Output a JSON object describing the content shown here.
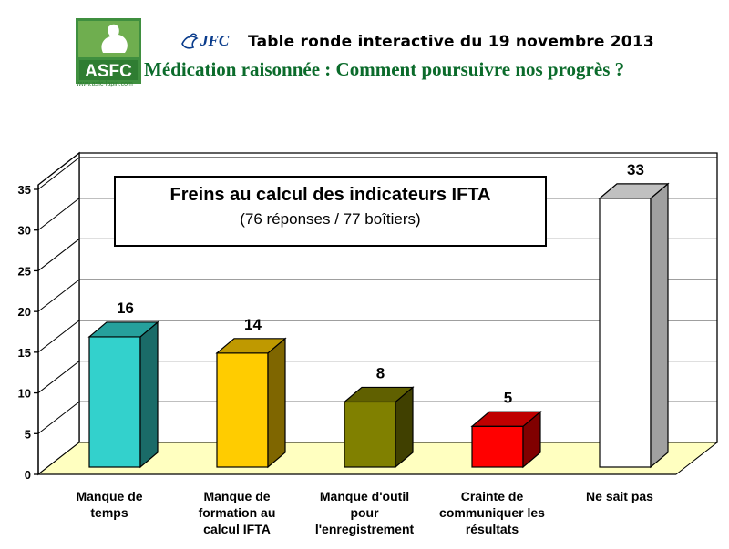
{
  "header": {
    "logo_text": "ASFC",
    "logo_caption": "www.asfc-lapin.com",
    "jfc_text": "JFC",
    "event_title": "Table ronde interactive du 19 novembre 2013",
    "subtitle": "Médication raisonnée : Comment poursuivre nos progrès ?"
  },
  "chart_data": {
    "type": "bar",
    "title": "Freins au calcul des indicateurs IFTA",
    "subtitle": "(76 réponses / 77 boîtiers)",
    "categories": [
      [
        "Manque de",
        "temps"
      ],
      [
        "Manque de",
        "formation au",
        "calcul IFTA"
      ],
      [
        "Manque d'outil",
        "pour",
        "l'enregistrement"
      ],
      [
        "Crainte de",
        "communiquer les",
        "résultats"
      ],
      [
        "Ne sait pas"
      ]
    ],
    "values": [
      16,
      14,
      8,
      5,
      33
    ],
    "colors": [
      "#33d1cc",
      "#ffcc00",
      "#808000",
      "#ff0000",
      "#ffffff"
    ],
    "side_colors": [
      "#1a6b68",
      "#7f6600",
      "#404000",
      "#800000",
      "#a0a0a0"
    ],
    "top_colors": [
      "#26a09c",
      "#bf9900",
      "#606000",
      "#bf0000",
      "#c0c0c0"
    ],
    "ylim": [
      0,
      35
    ],
    "yticks": [
      0,
      5,
      10,
      15,
      20,
      25,
      30,
      35
    ],
    "grid": true,
    "floor_color": "#ffffc0"
  }
}
